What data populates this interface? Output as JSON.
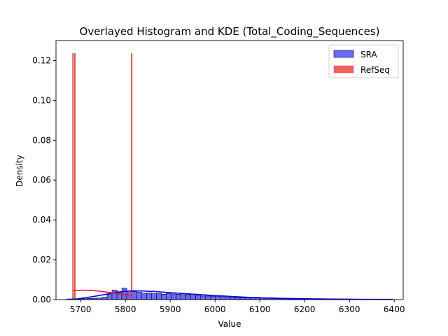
{
  "chart_data": {
    "type": "histogram",
    "title": "Overlayed Histogram and KDE (Total_Coding_Sequences)",
    "xlabel": "Value",
    "ylabel": "Density",
    "xlim": [
      5645,
      6420
    ],
    "ylim": [
      0,
      0.13
    ],
    "x_ticks": [
      5700,
      5800,
      5900,
      6000,
      6100,
      6200,
      6300,
      6400
    ],
    "y_ticks": [
      0.0,
      0.02,
      0.04,
      0.06,
      0.08,
      0.1,
      0.12
    ],
    "y_tick_labels": [
      "0.00",
      "0.02",
      "0.04",
      "0.06",
      "0.08",
      "0.10",
      "0.12"
    ],
    "legend_position": "top-right",
    "series": [
      {
        "name": "SRA",
        "color": "#0000ff",
        "fill": "#6a6aff",
        "bin_edges": [
          5682,
          5693,
          5704,
          5715,
          5726,
          5737,
          5748,
          5759,
          5770,
          5781,
          5792,
          5803,
          5814,
          5825,
          5836,
          5847,
          5858,
          5869,
          5880,
          5891,
          5902,
          5913,
          5924,
          5935,
          5946,
          5957,
          5968,
          5979,
          5990,
          6001,
          6012,
          6023,
          6034,
          6045,
          6056,
          6067,
          6078,
          6089,
          6100,
          6111,
          6122,
          6133,
          6144,
          6155,
          6166,
          6177,
          6188,
          6199,
          6210,
          6221,
          6232
        ],
        "densities": [
          0.0002,
          0.0002,
          0.0004,
          0.0006,
          0.0006,
          0.0008,
          0.0012,
          0.0025,
          0.0048,
          0.004,
          0.0058,
          0.0044,
          0.004,
          0.0038,
          0.0033,
          0.0034,
          0.003,
          0.003,
          0.0027,
          0.003,
          0.0028,
          0.0027,
          0.0025,
          0.0025,
          0.0022,
          0.0022,
          0.0018,
          0.0018,
          0.0017,
          0.0015,
          0.0014,
          0.0012,
          0.0012,
          0.001,
          0.001,
          0.0009,
          0.0008,
          0.0012,
          0.0008,
          0.0006,
          0.0005,
          0.0005,
          0.0004,
          0.0004,
          0.0003,
          0.0003,
          0.0003,
          0.0002,
          0.0002,
          0.0002
        ],
        "kde": {
          "x": [
            5668,
            5690,
            5710,
            5730,
            5750,
            5770,
            5790,
            5805,
            5820,
            5840,
            5860,
            5880,
            5900,
            5920,
            5940,
            5960,
            5980,
            6000,
            6020,
            6040,
            6060,
            6080,
            6100,
            6120,
            6140,
            6160,
            6180,
            6200,
            6250,
            6300,
            6350,
            6397
          ],
          "y": [
            0.0001,
            0.0003,
            0.0009,
            0.0016,
            0.0024,
            0.0032,
            0.0039,
            0.0043,
            0.0044,
            0.0043,
            0.0041,
            0.0038,
            0.0035,
            0.0032,
            0.0029,
            0.0026,
            0.0023,
            0.002,
            0.0018,
            0.0015,
            0.0013,
            0.0011,
            0.0009,
            0.0008,
            0.0007,
            0.0006,
            0.0005,
            0.0004,
            0.0003,
            0.0002,
            0.0001,
            0.0001
          ]
        }
      },
      {
        "name": "RefSeq",
        "color": "#e41a1c",
        "fill": "#f06060",
        "bars": [
          {
            "x_start": 5682,
            "x_end": 5684,
            "density": 0.1235
          },
          {
            "x_start": 5686,
            "x_end": 5688,
            "density": 0.1235
          },
          {
            "x_start": 5813,
            "x_end": 5815,
            "density": 0.1235
          }
        ],
        "kde": {
          "x": [
            5682,
            5690,
            5700,
            5710,
            5720,
            5730,
            5740,
            5750,
            5760,
            5770,
            5780,
            5790,
            5800,
            5810,
            5815
          ],
          "y": [
            0.0044,
            0.0046,
            0.0047,
            0.0047,
            0.0046,
            0.0045,
            0.0043,
            0.004,
            0.0037,
            0.0034,
            0.0031,
            0.0028,
            0.0025,
            0.0022,
            0.002
          ]
        }
      }
    ]
  }
}
